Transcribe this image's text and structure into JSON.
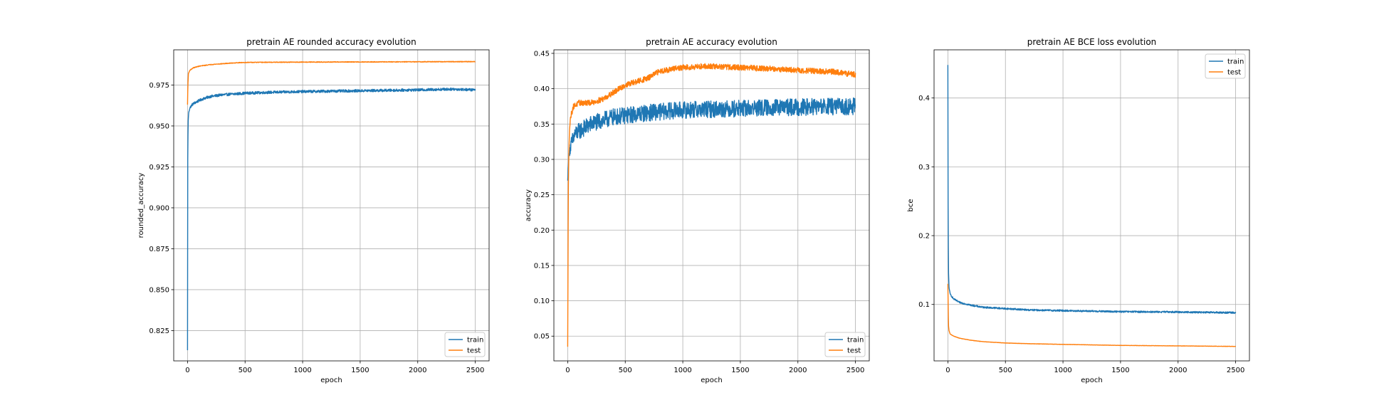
{
  "chart_data": [
    {
      "type": "line",
      "title": "pretrain AE rounded accuracy evolution",
      "xlabel": "epoch",
      "ylabel": "rounded_accuracy",
      "xlim": [
        -120,
        2620
      ],
      "ylim": [
        0.8065,
        0.9965
      ],
      "xticks": [
        0,
        500,
        1000,
        1500,
        2000,
        2500
      ],
      "xtick_labels": [
        "0",
        "500",
        "1000",
        "1500",
        "2000",
        "2500"
      ],
      "yticks": [
        0.825,
        0.85,
        0.875,
        0.9,
        0.925,
        0.95,
        0.975
      ],
      "ytick_labels": [
        "0.825",
        "0.850",
        "0.875",
        "0.900",
        "0.925",
        "0.950",
        "0.975"
      ],
      "grid": true,
      "legend_position": "lower right",
      "series": [
        {
          "name": "train",
          "color": "#1f77b4",
          "noise": 0.0008,
          "x": [
            0,
            2,
            5,
            10,
            20,
            40,
            60,
            100,
            150,
            200,
            300,
            400,
            500,
            700,
            1000,
            1500,
            2000,
            2300,
            2500
          ],
          "y": [
            0.813,
            0.93,
            0.952,
            0.958,
            0.961,
            0.963,
            0.964,
            0.9655,
            0.967,
            0.968,
            0.969,
            0.9695,
            0.97,
            0.9705,
            0.971,
            0.9715,
            0.972,
            0.9725,
            0.972
          ]
        },
        {
          "name": "test",
          "color": "#ff7f0e",
          "noise": 0.0002,
          "x": [
            0,
            3,
            8,
            20,
            50,
            100,
            200,
            300,
            400,
            500,
            1000,
            1500,
            2000,
            2500
          ],
          "y": [
            0.963,
            0.975,
            0.982,
            0.984,
            0.9855,
            0.9865,
            0.9875,
            0.988,
            0.9885,
            0.9888,
            0.989,
            0.9891,
            0.9892,
            0.9893
          ]
        }
      ]
    },
    {
      "type": "line",
      "title": "pretrain AE accuracy evolution",
      "xlabel": "epoch",
      "ylabel": "accuracy",
      "xlim": [
        -120,
        2620
      ],
      "ylim": [
        0.015,
        0.455
      ],
      "xticks": [
        0,
        500,
        1000,
        1500,
        2000,
        2500
      ],
      "xtick_labels": [
        "0",
        "500",
        "1000",
        "1500",
        "2000",
        "2500"
      ],
      "yticks": [
        0.05,
        0.1,
        0.15,
        0.2,
        0.25,
        0.3,
        0.35,
        0.4,
        0.45
      ],
      "ytick_labels": [
        "0.05",
        "0.10",
        "0.15",
        "0.20",
        "0.25",
        "0.30",
        "0.35",
        "0.40",
        "0.45"
      ],
      "grid": true,
      "legend_position": "lower right",
      "series": [
        {
          "name": "train",
          "color": "#1f77b4",
          "noise": 0.012,
          "x": [
            0,
            5,
            10,
            20,
            40,
            60,
            100,
            150,
            200,
            300,
            400,
            500,
            700,
            1000,
            1500,
            2000,
            2500
          ],
          "y": [
            0.27,
            0.29,
            0.305,
            0.315,
            0.325,
            0.335,
            0.34,
            0.345,
            0.35,
            0.355,
            0.36,
            0.362,
            0.366,
            0.37,
            0.372,
            0.374,
            0.375
          ]
        },
        {
          "name": "test",
          "color": "#ff7f0e",
          "noise": 0.004,
          "x": [
            0,
            5,
            10,
            15,
            25,
            50,
            100,
            200,
            300,
            400,
            500,
            600,
            700,
            800,
            1000,
            1200,
            1500,
            1800,
            2000,
            2300,
            2500
          ],
          "y": [
            0.035,
            0.25,
            0.31,
            0.34,
            0.36,
            0.375,
            0.38,
            0.38,
            0.385,
            0.395,
            0.405,
            0.41,
            0.415,
            0.425,
            0.43,
            0.432,
            0.43,
            0.428,
            0.426,
            0.424,
            0.42
          ]
        }
      ]
    },
    {
      "type": "line",
      "title": "pretrain AE BCE loss evolution",
      "xlabel": "epoch",
      "ylabel": "bce",
      "xlim": [
        -120,
        2620
      ],
      "ylim": [
        0.018,
        0.47
      ],
      "xticks": [
        0,
        500,
        1000,
        1500,
        2000,
        2500
      ],
      "xtick_labels": [
        "0",
        "500",
        "1000",
        "1500",
        "2000",
        "2500"
      ],
      "yticks": [
        0.1,
        0.2,
        0.3,
        0.4
      ],
      "ytick_labels": [
        "0.1",
        "0.2",
        "0.3",
        "0.4"
      ],
      "grid": true,
      "legend_position": "upper right",
      "series": [
        {
          "name": "train",
          "color": "#1f77b4",
          "noise": 0.0012,
          "x": [
            0,
            2,
            5,
            10,
            20,
            50,
            100,
            200,
            300,
            500,
            700,
            1000,
            1500,
            2000,
            2500
          ],
          "y": [
            0.448,
            0.25,
            0.15,
            0.125,
            0.115,
            0.108,
            0.103,
            0.099,
            0.096,
            0.094,
            0.092,
            0.091,
            0.0895,
            0.089,
            0.088
          ]
        },
        {
          "name": "test",
          "color": "#ff7f0e",
          "noise": 0.0002,
          "x": [
            0,
            5,
            10,
            20,
            50,
            100,
            200,
            300,
            500,
            700,
            1000,
            1500,
            2000,
            2500
          ],
          "y": [
            0.13,
            0.07,
            0.062,
            0.057,
            0.054,
            0.051,
            0.048,
            0.046,
            0.044,
            0.043,
            0.042,
            0.0405,
            0.0398,
            0.039
          ]
        }
      ]
    }
  ]
}
